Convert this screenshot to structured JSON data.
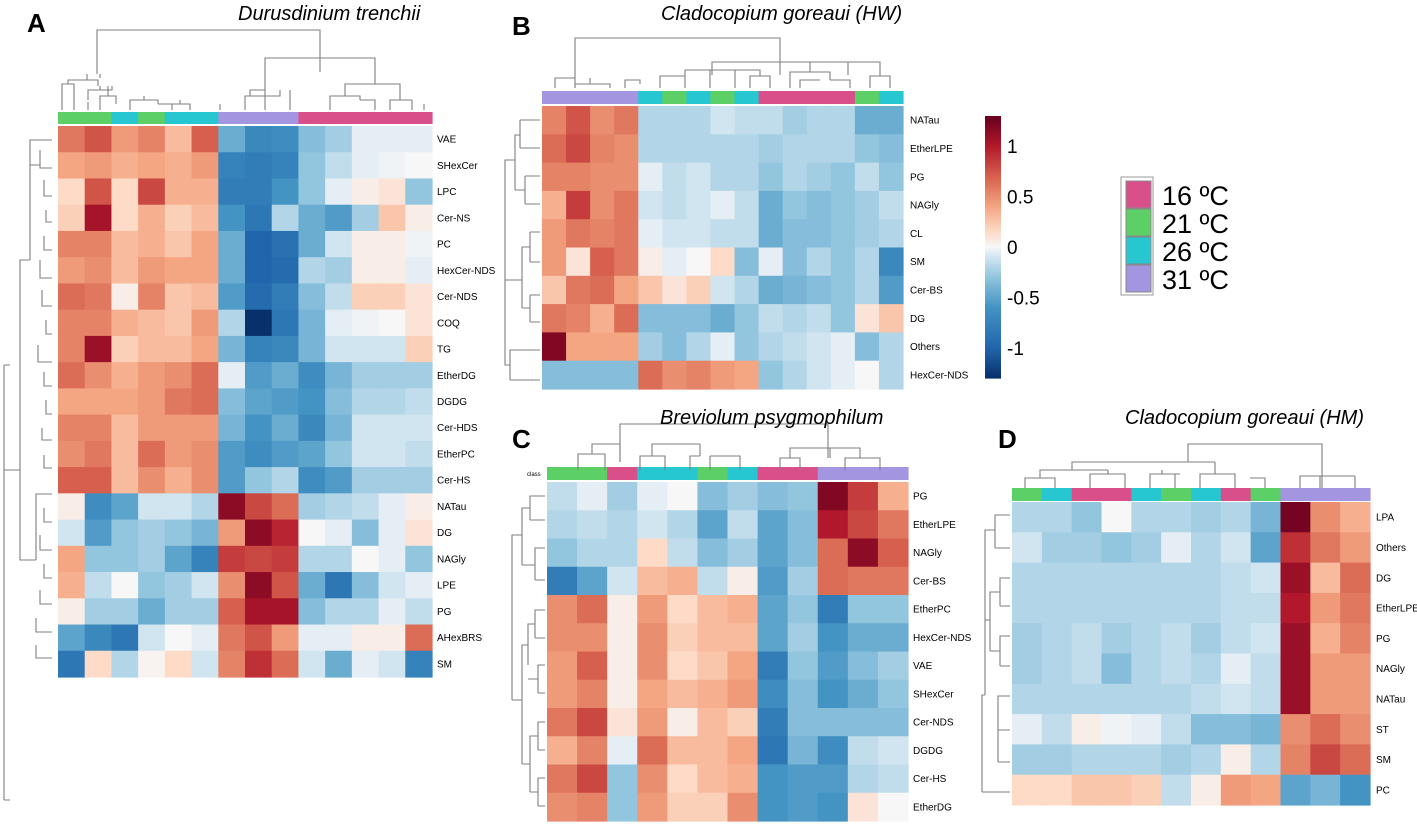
{
  "chart_data": [
    {
      "type": "heatmap",
      "panel": "A",
      "title": "Durusdinium trenchii",
      "columns": [
        "21",
        "21",
        "26",
        "21",
        "26",
        "26",
        "31",
        "31",
        "31",
        "16",
        "16",
        "16",
        "16",
        "16"
      ],
      "rows": [
        "VAE",
        "SHexCer",
        "LPC",
        "Cer-NS",
        "PC",
        "HexCer-NDS",
        "Cer-NDS",
        "COQ",
        "TG",
        "EtherDG",
        "DGDG",
        "Cer-HDS",
        "EtherPC",
        "Cer-HS",
        "NATau",
        "DG",
        "NAGly",
        "LPE",
        "PG",
        "AHexBRS",
        "SM"
      ],
      "values": [
        [
          0.6,
          0.75,
          0.45,
          0.55,
          0.3,
          0.7,
          -0.45,
          -0.7,
          -0.65,
          -0.35,
          -0.25,
          -0.05,
          -0.05,
          -0.05
        ],
        [
          0.4,
          0.45,
          0.35,
          0.4,
          0.35,
          0.45,
          -0.75,
          -0.8,
          -0.75,
          -0.3,
          -0.15,
          -0.05,
          -0.02,
          0.0
        ],
        [
          0.15,
          0.75,
          0.15,
          0.8,
          0.35,
          0.35,
          -0.8,
          -0.8,
          -0.6,
          -0.3,
          -0.05,
          0.05,
          0.1,
          -0.3
        ],
        [
          0.2,
          1.05,
          0.15,
          0.35,
          0.2,
          0.3,
          -0.6,
          -0.85,
          -0.2,
          -0.45,
          -0.55,
          -0.25,
          0.25,
          0.05
        ],
        [
          0.55,
          0.55,
          0.3,
          0.35,
          0.25,
          0.4,
          -0.45,
          -1.0,
          -0.9,
          -0.45,
          -0.1,
          0.05,
          0.05,
          -0.02
        ],
        [
          0.45,
          0.5,
          0.3,
          0.45,
          0.4,
          0.4,
          -0.45,
          -1.0,
          -0.95,
          -0.2,
          -0.25,
          0.05,
          0.05,
          -0.05
        ],
        [
          0.65,
          0.6,
          0.05,
          0.55,
          0.25,
          0.3,
          -0.55,
          -0.95,
          -0.8,
          -0.35,
          -0.15,
          0.2,
          0.2,
          0.1
        ],
        [
          0.55,
          0.55,
          0.35,
          0.3,
          0.25,
          0.45,
          -0.2,
          -1.3,
          -0.85,
          -0.4,
          -0.05,
          -0.02,
          0.0,
          0.1
        ],
        [
          0.55,
          1.1,
          0.2,
          0.3,
          0.3,
          0.4,
          -0.4,
          -0.75,
          -0.7,
          -0.4,
          -0.1,
          -0.1,
          -0.1,
          0.2
        ],
        [
          0.65,
          0.5,
          0.35,
          0.45,
          0.5,
          0.65,
          -0.05,
          -0.55,
          -0.45,
          -0.65,
          -0.4,
          -0.25,
          -0.25,
          -0.25
        ],
        [
          0.4,
          0.4,
          0.4,
          0.45,
          0.6,
          0.65,
          -0.35,
          -0.5,
          -0.55,
          -0.6,
          -0.35,
          -0.2,
          -0.2,
          -0.15
        ],
        [
          0.55,
          0.55,
          0.3,
          0.45,
          0.45,
          0.45,
          -0.4,
          -0.6,
          -0.45,
          -0.7,
          -0.4,
          -0.1,
          -0.1,
          -0.1
        ],
        [
          0.5,
          0.6,
          0.3,
          0.65,
          0.45,
          0.5,
          -0.55,
          -0.65,
          -0.55,
          -0.5,
          -0.3,
          -0.1,
          -0.1,
          -0.15
        ],
        [
          0.7,
          0.7,
          0.3,
          0.5,
          0.35,
          0.5,
          -0.55,
          -0.3,
          -0.2,
          -0.65,
          -0.55,
          -0.25,
          -0.25,
          -0.25
        ],
        [
          0.05,
          -0.65,
          -0.5,
          -0.1,
          -0.1,
          -0.2,
          1.15,
          0.8,
          0.65,
          -0.25,
          -0.2,
          -0.15,
          -0.05,
          0.05
        ],
        [
          -0.1,
          -0.55,
          -0.3,
          -0.25,
          -0.3,
          -0.4,
          0.45,
          1.15,
          0.95,
          0.0,
          -0.05,
          -0.35,
          -0.05,
          0.1
        ],
        [
          0.4,
          -0.3,
          -0.3,
          -0.25,
          -0.5,
          -0.75,
          0.85,
          0.8,
          0.85,
          -0.2,
          -0.2,
          0.0,
          -0.05,
          -0.3
        ],
        [
          0.35,
          -0.15,
          0.0,
          -0.3,
          -0.25,
          -0.1,
          0.5,
          1.15,
          0.75,
          -0.45,
          -0.85,
          -0.35,
          -0.1,
          -0.05
        ],
        [
          0.05,
          -0.25,
          -0.25,
          -0.45,
          -0.25,
          -0.25,
          0.7,
          1.05,
          1.05,
          -0.35,
          -0.2,
          -0.2,
          -0.05,
          -0.15
        ],
        [
          -0.5,
          -0.7,
          -0.85,
          -0.1,
          0.0,
          -0.05,
          0.6,
          0.75,
          0.45,
          -0.05,
          -0.05,
          0.05,
          0.05,
          0.65
        ],
        [
          -0.85,
          0.15,
          -0.2,
          0.02,
          0.15,
          -0.1,
          0.55,
          0.9,
          0.65,
          -0.1,
          -0.45,
          -0.05,
          -0.1,
          -0.75
        ]
      ]
    },
    {
      "type": "heatmap",
      "panel": "B",
      "title": "Cladocopium goreaui (HW)",
      "columns": [
        "31",
        "31",
        "31",
        "31",
        "26",
        "21",
        "26",
        "21",
        "26",
        "16",
        "16",
        "16",
        "16",
        "21",
        "26"
      ],
      "rows": [
        "NATau",
        "EtherLPE",
        "PG",
        "NAGly",
        "CL",
        "SM",
        "Cer-BS",
        "DG",
        "Others",
        "HexCer-NDS"
      ],
      "values": [
        [
          0.55,
          0.75,
          0.5,
          0.6,
          -0.2,
          -0.2,
          -0.2,
          -0.1,
          -0.15,
          -0.15,
          -0.25,
          -0.2,
          -0.2,
          -0.45,
          -0.45
        ],
        [
          0.65,
          0.8,
          0.55,
          0.5,
          -0.2,
          -0.2,
          -0.2,
          -0.2,
          -0.2,
          -0.25,
          -0.2,
          -0.2,
          -0.2,
          -0.3,
          -0.35
        ],
        [
          0.55,
          0.55,
          0.5,
          0.5,
          -0.05,
          -0.15,
          -0.1,
          -0.2,
          -0.2,
          -0.3,
          -0.2,
          -0.25,
          -0.3,
          -0.15,
          -0.3
        ],
        [
          0.35,
          0.85,
          0.5,
          0.6,
          -0.1,
          -0.15,
          -0.1,
          -0.05,
          -0.15,
          -0.45,
          -0.3,
          -0.35,
          -0.3,
          -0.25,
          -0.15
        ],
        [
          0.45,
          0.6,
          0.55,
          0.6,
          -0.05,
          -0.1,
          -0.1,
          -0.15,
          -0.15,
          -0.45,
          -0.35,
          -0.35,
          -0.3,
          -0.25,
          -0.2
        ],
        [
          0.45,
          0.1,
          0.7,
          0.6,
          0.05,
          -0.05,
          0.0,
          0.15,
          -0.35,
          -0.05,
          -0.35,
          -0.2,
          -0.3,
          -0.2,
          -0.7
        ],
        [
          0.25,
          0.6,
          0.65,
          0.4,
          0.25,
          0.1,
          0.2,
          -0.1,
          -0.2,
          -0.45,
          -0.4,
          -0.35,
          -0.3,
          -0.2,
          -0.55
        ],
        [
          0.6,
          0.55,
          0.35,
          0.65,
          -0.35,
          -0.35,
          -0.35,
          -0.45,
          -0.3,
          -0.15,
          -0.2,
          -0.15,
          -0.3,
          0.1,
          0.25
        ],
        [
          1.2,
          0.4,
          0.4,
          0.4,
          -0.25,
          -0.35,
          -0.2,
          -0.05,
          -0.3,
          -0.2,
          -0.15,
          -0.1,
          -0.05,
          -0.35,
          -0.2
        ],
        [
          -0.35,
          -0.35,
          -0.35,
          -0.35,
          0.65,
          0.5,
          0.55,
          0.45,
          0.4,
          -0.3,
          -0.2,
          -0.1,
          -0.05,
          0.0,
          -0.2
        ]
      ]
    },
    {
      "type": "heatmap",
      "panel": "C",
      "title": "Breviolum psygmophilum",
      "class_label": "class",
      "columns": [
        "21",
        "21",
        "16",
        "26",
        "26",
        "21",
        "26",
        "16",
        "16",
        "31",
        "31",
        "31"
      ],
      "rows": [
        "PG",
        "EtherLPE",
        "NAGly",
        "Cer-BS",
        "EtherPC",
        "HexCer-NDS",
        "VAE",
        "SHexCer",
        "Cer-NDS",
        "DGDG",
        "Cer-HS",
        "EtherDG"
      ],
      "values": [
        [
          -0.15,
          -0.05,
          -0.25,
          -0.05,
          0.0,
          -0.35,
          -0.25,
          -0.35,
          -0.3,
          1.2,
          0.85,
          0.35
        ],
        [
          -0.2,
          -0.15,
          -0.2,
          -0.1,
          -0.2,
          -0.5,
          -0.15,
          -0.5,
          -0.35,
          1.0,
          0.8,
          0.6
        ],
        [
          -0.3,
          -0.2,
          -0.2,
          0.15,
          -0.15,
          -0.35,
          -0.25,
          -0.5,
          -0.35,
          0.65,
          1.15,
          0.7
        ],
        [
          -0.8,
          -0.5,
          -0.1,
          0.3,
          0.35,
          -0.15,
          0.05,
          -0.55,
          -0.25,
          0.65,
          0.6,
          0.6
        ],
        [
          0.5,
          0.65,
          0.05,
          0.45,
          0.15,
          0.3,
          0.35,
          -0.5,
          -0.3,
          -0.8,
          -0.3,
          -0.3
        ],
        [
          0.5,
          0.5,
          0.05,
          0.5,
          0.2,
          0.3,
          0.3,
          -0.5,
          -0.25,
          -0.6,
          -0.45,
          -0.45
        ],
        [
          0.45,
          0.7,
          0.05,
          0.5,
          0.15,
          0.25,
          0.4,
          -0.8,
          -0.3,
          -0.55,
          -0.35,
          -0.25
        ],
        [
          0.45,
          0.55,
          0.05,
          0.4,
          0.3,
          0.35,
          0.45,
          -0.65,
          -0.35,
          -0.6,
          -0.45,
          -0.3
        ],
        [
          0.6,
          0.8,
          0.1,
          0.45,
          0.05,
          0.3,
          0.2,
          -0.8,
          -0.35,
          -0.35,
          -0.35,
          -0.35
        ],
        [
          0.35,
          0.55,
          -0.05,
          0.65,
          0.3,
          0.3,
          0.4,
          -0.85,
          -0.4,
          -0.65,
          -0.15,
          -0.1
        ],
        [
          0.6,
          0.8,
          -0.3,
          0.5,
          0.15,
          0.3,
          0.35,
          -0.6,
          -0.55,
          -0.55,
          -0.2,
          -0.15
        ],
        [
          0.5,
          0.55,
          -0.3,
          0.45,
          0.2,
          0.2,
          0.5,
          -0.6,
          -0.55,
          -0.6,
          0.1,
          0.0
        ]
      ]
    },
    {
      "type": "heatmap",
      "panel": "D",
      "title": "Cladocopium goreaui (HM)",
      "columns": [
        "21",
        "26",
        "16",
        "16",
        "26",
        "21",
        "26",
        "16",
        "21",
        "31",
        "31",
        "31"
      ],
      "rows": [
        "LPA",
        "Others",
        "DG",
        "EtherLPE",
        "PG",
        "NAGly",
        "NATau",
        "ST",
        "SM",
        "PC"
      ],
      "values": [
        [
          -0.2,
          -0.2,
          -0.3,
          0.0,
          -0.2,
          -0.2,
          -0.25,
          -0.2,
          -0.4,
          1.25,
          0.5,
          0.35
        ],
        [
          -0.1,
          -0.25,
          -0.25,
          -0.3,
          -0.25,
          -0.05,
          -0.2,
          -0.1,
          -0.5,
          0.9,
          0.6,
          0.45
        ],
        [
          -0.2,
          -0.2,
          -0.2,
          -0.2,
          -0.2,
          -0.2,
          -0.2,
          -0.15,
          -0.1,
          1.1,
          0.3,
          0.65
        ],
        [
          -0.2,
          -0.2,
          -0.2,
          -0.2,
          -0.2,
          -0.2,
          -0.2,
          -0.15,
          -0.15,
          1.0,
          0.45,
          0.6
        ],
        [
          -0.25,
          -0.2,
          -0.15,
          -0.25,
          -0.2,
          -0.15,
          -0.25,
          -0.15,
          -0.1,
          1.1,
          0.35,
          0.55
        ],
        [
          -0.25,
          -0.2,
          -0.15,
          -0.35,
          -0.2,
          -0.15,
          -0.2,
          -0.05,
          -0.15,
          1.1,
          0.45,
          0.45
        ],
        [
          -0.2,
          -0.2,
          -0.2,
          -0.2,
          -0.2,
          -0.2,
          -0.15,
          -0.1,
          -0.15,
          1.1,
          0.45,
          0.45
        ],
        [
          -0.05,
          -0.15,
          0.05,
          -0.02,
          -0.05,
          -0.15,
          -0.35,
          -0.35,
          -0.4,
          0.5,
          0.65,
          0.5
        ],
        [
          -0.25,
          -0.25,
          -0.2,
          -0.2,
          -0.2,
          -0.25,
          -0.2,
          0.05,
          -0.2,
          0.55,
          0.8,
          0.65
        ],
        [
          0.15,
          0.15,
          0.25,
          0.25,
          0.2,
          -0.15,
          0.05,
          0.45,
          0.4,
          -0.5,
          -0.4,
          -0.6
        ]
      ]
    }
  ],
  "colorbar": {
    "range": [
      -1.3,
      1.3
    ],
    "ticks": [
      "1",
      "0.5",
      "0",
      "-0.5",
      "-1"
    ],
    "tick_values": [
      1,
      0.5,
      0,
      -0.5,
      -1
    ]
  },
  "legend": [
    {
      "key": "16",
      "label": "16 ºC",
      "color": "#d94f8a"
    },
    {
      "key": "21",
      "label": "21 ºC",
      "color": "#5ccf66"
    },
    {
      "key": "26",
      "label": "26 ºC",
      "color": "#26c7d0"
    },
    {
      "key": "31",
      "label": "31 ºC",
      "color": "#a395df"
    }
  ]
}
